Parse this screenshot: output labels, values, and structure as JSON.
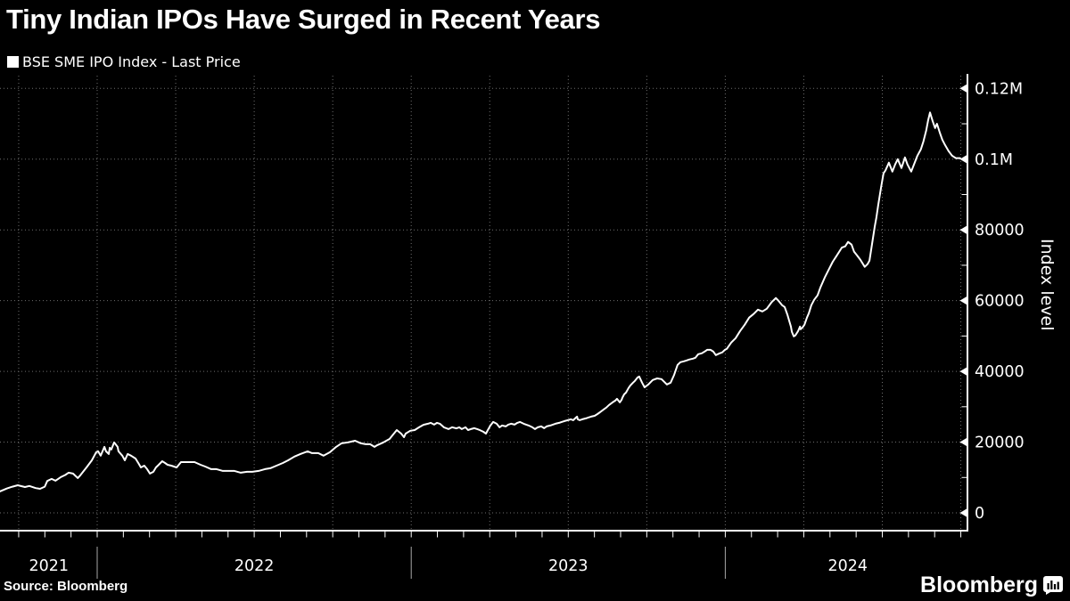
{
  "title": "Tiny Indian IPOs Have Surged in Recent Years",
  "legend": {
    "series_label": "BSE SME IPO Index - Last Price",
    "swatch_color": "#ffffff"
  },
  "y_axis": {
    "label": "Index level",
    "tick_values": [
      0,
      20000,
      40000,
      60000,
      80000,
      100000,
      120000
    ],
    "tick_labels": [
      "0",
      "20000",
      "40000",
      "60000",
      "80000",
      "0.1M",
      "0.12M"
    ],
    "minor_values": [
      10000,
      30000,
      50000,
      70000,
      90000,
      110000
    ]
  },
  "x_axis": {
    "year_labels": [
      {
        "label": "2021",
        "t": 2021.846
      },
      {
        "label": "2022",
        "t": 2022.5
      },
      {
        "label": "2023",
        "t": 2023.5
      },
      {
        "label": "2024",
        "t": 2024.39
      }
    ],
    "year_dividers": [
      2022,
      2023,
      2024
    ],
    "month_tick_start": 2021.75,
    "month_tick_count": 37,
    "quarter_grid_start": 2021.75,
    "quarter_grid_count": 13
  },
  "footer": {
    "source": "Source: Bloomberg",
    "logo_text": "Bloomberg"
  },
  "colors": {
    "background": "#000000",
    "text": "#ffffff",
    "line": "#ffffff",
    "grid": "#6e6e6e",
    "divider": "#a8a8a8"
  },
  "chart_data": {
    "type": "line",
    "title": "Tiny Indian IPOs Have Surged in Recent Years",
    "series_name": "BSE SME IPO Index - Last Price",
    "xlabel": "",
    "ylabel": "Index level",
    "x_unit": "decimal_year",
    "x_range": [
      2021.69,
      2024.775
    ],
    "y_range": [
      0,
      123800
    ],
    "grid": "dotted, quarterly vertical, every 20000 horizontal",
    "legend_position": "top-left",
    "points": [
      [
        2021.691,
        6100
      ],
      [
        2021.713,
        6900
      ],
      [
        2021.73,
        7400
      ],
      [
        2021.747,
        7800
      ],
      [
        2021.77,
        7300
      ],
      [
        2021.784,
        7600
      ],
      [
        2021.804,
        7000
      ],
      [
        2021.818,
        6800
      ],
      [
        2021.833,
        7400
      ],
      [
        2021.841,
        9000
      ],
      [
        2021.855,
        9600
      ],
      [
        2021.867,
        9100
      ],
      [
        2021.884,
        10100
      ],
      [
        2021.898,
        10700
      ],
      [
        2021.909,
        11350
      ],
      [
        2021.923,
        11100
      ],
      [
        2021.938,
        9850
      ],
      [
        2021.946,
        10600
      ],
      [
        2021.966,
        12850
      ],
      [
        2021.983,
        14850
      ],
      [
        2021.997,
        17150
      ],
      [
        2022.003,
        17400
      ],
      [
        2022.011,
        16150
      ],
      [
        2022.023,
        18650
      ],
      [
        2022.028,
        17400
      ],
      [
        2022.037,
        16650
      ],
      [
        2022.04,
        18400
      ],
      [
        2022.045,
        17900
      ],
      [
        2022.054,
        19900
      ],
      [
        2022.065,
        18650
      ],
      [
        2022.068,
        17400
      ],
      [
        2022.08,
        16150
      ],
      [
        2022.088,
        14850
      ],
      [
        2022.097,
        16650
      ],
      [
        2022.108,
        16150
      ],
      [
        2022.122,
        15350
      ],
      [
        2022.131,
        14100
      ],
      [
        2022.139,
        12850
      ],
      [
        2022.15,
        13350
      ],
      [
        2022.159,
        12350
      ],
      [
        2022.168,
        11100
      ],
      [
        2022.179,
        11600
      ],
      [
        2022.187,
        12850
      ],
      [
        2022.196,
        13600
      ],
      [
        2022.207,
        14600
      ],
      [
        2022.216,
        14100
      ],
      [
        2022.224,
        13600
      ],
      [
        2022.236,
        13350
      ],
      [
        2022.253,
        12850
      ],
      [
        2022.267,
        14350
      ],
      [
        2022.287,
        14350
      ],
      [
        2022.31,
        14350
      ],
      [
        2022.329,
        13600
      ],
      [
        2022.344,
        13100
      ],
      [
        2022.363,
        12350
      ],
      [
        2022.38,
        12350
      ],
      [
        2022.4,
        11850
      ],
      [
        2022.42,
        11850
      ],
      [
        2022.437,
        11850
      ],
      [
        2022.457,
        11350
      ],
      [
        2022.477,
        11600
      ],
      [
        2022.494,
        11600
      ],
      [
        2022.514,
        11850
      ],
      [
        2022.534,
        12350
      ],
      [
        2022.551,
        12600
      ],
      [
        2022.571,
        13350
      ],
      [
        2022.591,
        14100
      ],
      [
        2022.608,
        14850
      ],
      [
        2022.628,
        15900
      ],
      [
        2022.647,
        16650
      ],
      [
        2022.67,
        17400
      ],
      [
        2022.684,
        16900
      ],
      [
        2022.704,
        16900
      ],
      [
        2022.721,
        16150
      ],
      [
        2022.741,
        17150
      ],
      [
        2022.761,
        18650
      ],
      [
        2022.778,
        19650
      ],
      [
        2022.798,
        19900
      ],
      [
        2022.821,
        20400
      ],
      [
        2022.84,
        19650
      ],
      [
        2022.855,
        19400
      ],
      [
        2022.869,
        19400
      ],
      [
        2022.883,
        18650
      ],
      [
        2022.892,
        19150
      ],
      [
        2022.911,
        19900
      ],
      [
        2022.931,
        20900
      ],
      [
        2022.94,
        21900
      ],
      [
        2022.954,
        23400
      ],
      [
        2022.968,
        22400
      ],
      [
        2022.977,
        21400
      ],
      [
        2022.982,
        22400
      ],
      [
        2022.997,
        23200
      ],
      [
        2023.011,
        23400
      ],
      [
        2023.025,
        24200
      ],
      [
        2023.039,
        24900
      ],
      [
        2023.053,
        25200
      ],
      [
        2023.062,
        25450
      ],
      [
        2023.073,
        24950
      ],
      [
        2023.082,
        25450
      ],
      [
        2023.091,
        25200
      ],
      [
        2023.104,
        24200
      ],
      [
        2023.119,
        23700
      ],
      [
        2023.13,
        24200
      ],
      [
        2023.144,
        23900
      ],
      [
        2023.153,
        24200
      ],
      [
        2023.161,
        23700
      ],
      [
        2023.173,
        24200
      ],
      [
        2023.181,
        23400
      ],
      [
        2023.19,
        23700
      ],
      [
        2023.201,
        23950
      ],
      [
        2023.21,
        23700
      ],
      [
        2023.218,
        23400
      ],
      [
        2023.23,
        22900
      ],
      [
        2023.238,
        22400
      ],
      [
        2023.244,
        23400
      ],
      [
        2023.252,
        24700
      ],
      [
        2023.261,
        25700
      ],
      [
        2023.272,
        25200
      ],
      [
        2023.281,
        24200
      ],
      [
        2023.289,
        24700
      ],
      [
        2023.301,
        24450
      ],
      [
        2023.309,
        24950
      ],
      [
        2023.318,
        25200
      ],
      [
        2023.329,
        24950
      ],
      [
        2023.338,
        25450
      ],
      [
        2023.346,
        25700
      ],
      [
        2023.358,
        25200
      ],
      [
        2023.366,
        24950
      ],
      [
        2023.374,
        24700
      ],
      [
        2023.386,
        24200
      ],
      [
        2023.394,
        23700
      ],
      [
        2023.403,
        24200
      ],
      [
        2023.414,
        24450
      ],
      [
        2023.423,
        23950
      ],
      [
        2023.431,
        24450
      ],
      [
        2023.443,
        24700
      ],
      [
        2023.451,
        24950
      ],
      [
        2023.459,
        25200
      ],
      [
        2023.471,
        25450
      ],
      [
        2023.479,
        25700
      ],
      [
        2023.488,
        25950
      ],
      [
        2023.499,
        26200
      ],
      [
        2023.508,
        26450
      ],
      [
        2023.516,
        26200
      ],
      [
        2023.522,
        26700
      ],
      [
        2023.528,
        27200
      ],
      [
        2023.53,
        26450
      ],
      [
        2023.536,
        26200
      ],
      [
        2023.545,
        26450
      ],
      [
        2023.556,
        26700
      ],
      [
        2023.564,
        26950
      ],
      [
        2023.573,
        27200
      ],
      [
        2023.584,
        27450
      ],
      [
        2023.593,
        27950
      ],
      [
        2023.601,
        28450
      ],
      [
        2023.613,
        29250
      ],
      [
        2023.621,
        29750
      ],
      [
        2023.63,
        30500
      ],
      [
        2023.641,
        31250
      ],
      [
        2023.65,
        31750
      ],
      [
        2023.655,
        32250
      ],
      [
        2023.664,
        31250
      ],
      [
        2023.67,
        32000
      ],
      [
        2023.672,
        32500
      ],
      [
        2023.678,
        33500
      ],
      [
        2023.684,
        34000
      ],
      [
        2023.692,
        35300
      ],
      [
        2023.698,
        36050
      ],
      [
        2023.706,
        36800
      ],
      [
        2023.712,
        37300
      ],
      [
        2023.721,
        38300
      ],
      [
        2023.726,
        38550
      ],
      [
        2023.735,
        36800
      ],
      [
        2023.743,
        35500
      ],
      [
        2023.755,
        36300
      ],
      [
        2023.769,
        37550
      ],
      [
        2023.783,
        38000
      ],
      [
        2023.797,
        37800
      ],
      [
        2023.814,
        36300
      ],
      [
        2023.826,
        36800
      ],
      [
        2023.837,
        39000
      ],
      [
        2023.848,
        41850
      ],
      [
        2023.857,
        42600
      ],
      [
        2023.868,
        42850
      ],
      [
        2023.877,
        43100
      ],
      [
        2023.885,
        43350
      ],
      [
        2023.897,
        43600
      ],
      [
        2023.905,
        43850
      ],
      [
        2023.914,
        44850
      ],
      [
        2023.925,
        45100
      ],
      [
        2023.934,
        45600
      ],
      [
        2023.942,
        46100
      ],
      [
        2023.953,
        46100
      ],
      [
        2023.962,
        45600
      ],
      [
        2023.97,
        44600
      ],
      [
        2023.982,
        45100
      ],
      [
        2023.99,
        45350
      ],
      [
        2023.999,
        46100
      ],
      [
        2024.005,
        46400
      ],
      [
        2024.019,
        48150
      ],
      [
        2024.033,
        49400
      ],
      [
        2024.047,
        51400
      ],
      [
        2024.062,
        53200
      ],
      [
        2024.076,
        55200
      ],
      [
        2024.09,
        56200
      ],
      [
        2024.104,
        57450
      ],
      [
        2024.118,
        56950
      ],
      [
        2024.132,
        57700
      ],
      [
        2024.147,
        59500
      ],
      [
        2024.161,
        60750
      ],
      [
        2024.169,
        60000
      ],
      [
        2024.181,
        58700
      ],
      [
        2024.189,
        58200
      ],
      [
        2024.198,
        56000
      ],
      [
        2024.203,
        54450
      ],
      [
        2024.209,
        52650
      ],
      [
        2024.212,
        51150
      ],
      [
        2024.218,
        49900
      ],
      [
        2024.223,
        50150
      ],
      [
        2024.232,
        51400
      ],
      [
        2024.238,
        52650
      ],
      [
        2024.24,
        51900
      ],
      [
        2024.246,
        52400
      ],
      [
        2024.252,
        53200
      ],
      [
        2024.26,
        55200
      ],
      [
        2024.266,
        56450
      ],
      [
        2024.274,
        58700
      ],
      [
        2024.283,
        60250
      ],
      [
        2024.294,
        61500
      ],
      [
        2024.303,
        63750
      ],
      [
        2024.317,
        66550
      ],
      [
        2024.331,
        69050
      ],
      [
        2024.342,
        71000
      ],
      [
        2024.354,
        72600
      ],
      [
        2024.371,
        75000
      ],
      [
        2024.382,
        75350
      ],
      [
        2024.391,
        76600
      ],
      [
        2024.402,
        75850
      ],
      [
        2024.41,
        73850
      ],
      [
        2024.419,
        72850
      ],
      [
        2024.43,
        71600
      ],
      [
        2024.444,
        69550
      ],
      [
        2024.453,
        70300
      ],
      [
        2024.459,
        71300
      ],
      [
        2024.467,
        75850
      ],
      [
        2024.476,
        80900
      ],
      [
        2024.481,
        83400
      ],
      [
        2024.487,
        87000
      ],
      [
        2024.496,
        92000
      ],
      [
        2024.504,
        96000
      ],
      [
        2024.51,
        96800
      ],
      [
        2024.521,
        99000
      ],
      [
        2024.532,
        96500
      ],
      [
        2024.541,
        98500
      ],
      [
        2024.549,
        100000
      ],
      [
        2024.561,
        97500
      ],
      [
        2024.572,
        100500
      ],
      [
        2024.58,
        98500
      ],
      [
        2024.592,
        96500
      ],
      [
        2024.603,
        99000
      ],
      [
        2024.612,
        101000
      ],
      [
        2024.623,
        102800
      ],
      [
        2024.631,
        105000
      ],
      [
        2024.64,
        108200
      ],
      [
        2024.646,
        111000
      ],
      [
        2024.652,
        113200
      ],
      [
        2024.66,
        110800
      ],
      [
        2024.668,
        108800
      ],
      [
        2024.674,
        110000
      ],
      [
        2024.683,
        107500
      ],
      [
        2024.691,
        105500
      ],
      [
        2024.7,
        104000
      ],
      [
        2024.711,
        102300
      ],
      [
        2024.722,
        101000
      ],
      [
        2024.734,
        100300
      ],
      [
        2024.748,
        100300
      ]
    ]
  }
}
